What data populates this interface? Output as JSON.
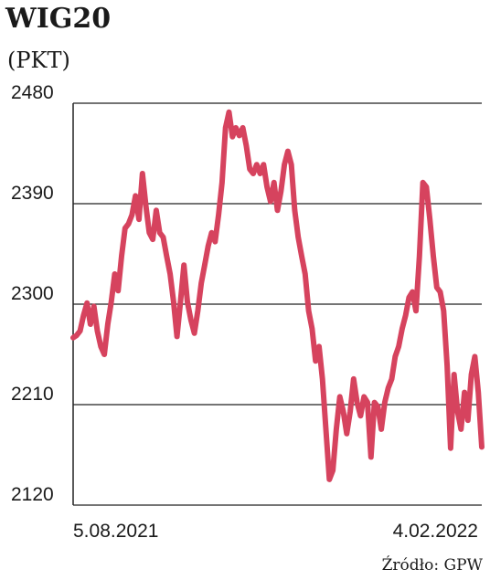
{
  "chart_data": {
    "type": "line",
    "title": "WIG20",
    "subtitle": "(PKT)",
    "source": "Źródło: GPW",
    "categories": [
      "5.08.2021",
      null,
      null,
      null,
      null,
      null,
      null,
      null,
      null,
      null,
      null,
      null,
      null,
      null,
      null,
      null,
      null,
      null,
      null,
      null,
      null,
      null,
      null,
      null,
      null,
      null,
      null,
      null,
      null,
      null,
      null,
      null,
      null,
      null,
      null,
      null,
      null,
      null,
      null,
      null,
      null,
      null,
      null,
      null,
      null,
      null,
      null,
      null,
      null,
      null,
      null,
      null,
      null,
      null,
      null,
      null,
      null,
      null,
      null,
      null,
      null,
      null,
      null,
      null,
      null,
      null,
      null,
      null,
      null,
      null,
      null,
      null,
      null,
      null,
      null,
      null,
      null,
      null,
      null,
      null,
      null,
      null,
      null,
      null,
      null,
      null,
      null,
      null,
      null,
      null,
      null,
      null,
      null,
      null,
      null,
      null,
      null,
      null,
      null,
      null,
      null,
      null,
      null,
      null,
      null,
      null,
      null,
      null,
      null,
      null,
      null,
      null,
      null,
      null,
      null,
      null,
      null,
      null,
      "4.02.2022"
    ],
    "values": [
      2270,
      2272,
      2276,
      2290,
      2301,
      2282,
      2298,
      2276,
      2262,
      2255,
      2282,
      2302,
      2327,
      2312,
      2343,
      2368,
      2372,
      2380,
      2397,
      2376,
      2417,
      2388,
      2364,
      2358,
      2384,
      2364,
      2360,
      2343,
      2327,
      2302,
      2271,
      2302,
      2335,
      2302,
      2286,
      2274,
      2294,
      2319,
      2335,
      2352,
      2364,
      2356,
      2380,
      2409,
      2458,
      2472,
      2450,
      2458,
      2451,
      2458,
      2442,
      2421,
      2417,
      2425,
      2417,
      2425,
      2405,
      2392,
      2409,
      2384,
      2401,
      2425,
      2437,
      2425,
      2384,
      2360,
      2343,
      2327,
      2294,
      2278,
      2249,
      2262,
      2233,
      2188,
      2143,
      2151,
      2188,
      2217,
      2204,
      2184,
      2204,
      2233,
      2212,
      2200,
      2217,
      2212,
      2163,
      2212,
      2208,
      2188,
      2212,
      2225,
      2233,
      2253,
      2262,
      2278,
      2290,
      2306,
      2311,
      2294,
      2343,
      2409,
      2405,
      2376,
      2343,
      2315,
      2311,
      2294,
      2245,
      2171,
      2237,
      2204,
      2188,
      2221,
      2196,
      2237,
      2253,
      2221,
      2172
    ],
    "color": "#d6435e",
    "ylim": [
      2120,
      2480
    ],
    "yticks": [
      2120,
      2210,
      2300,
      2390,
      2480
    ],
    "grid": true
  }
}
